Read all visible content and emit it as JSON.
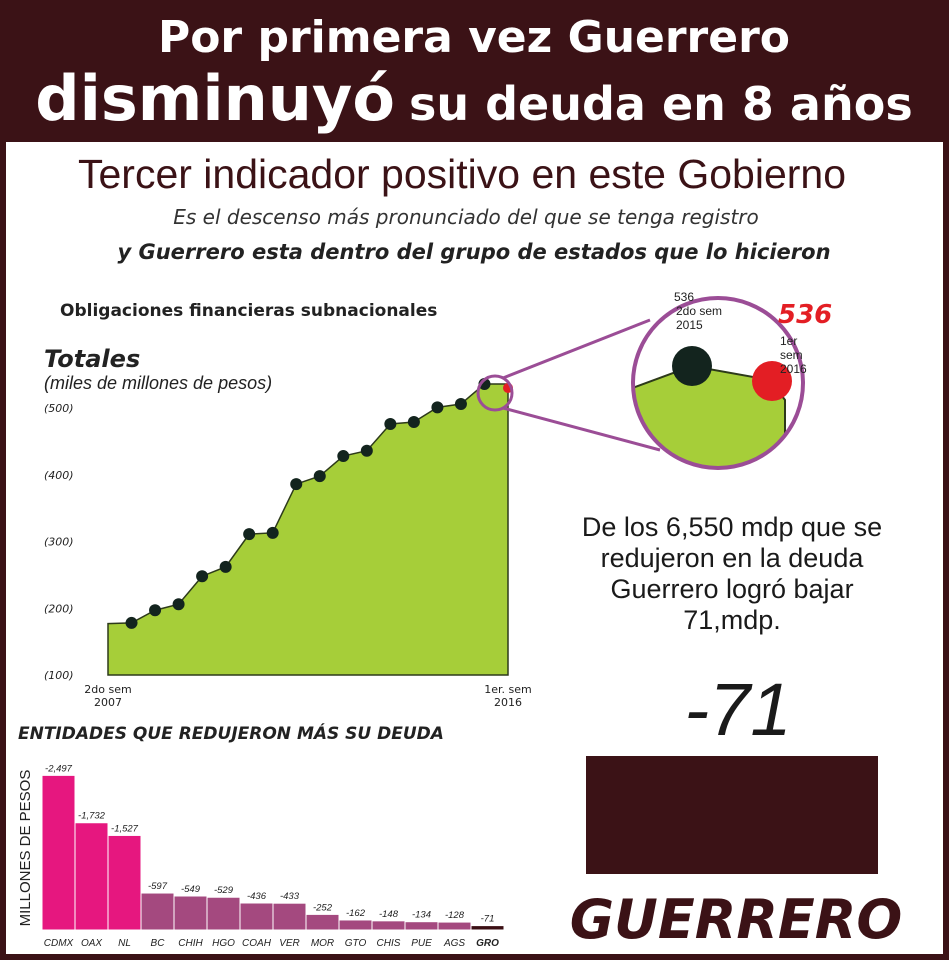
{
  "header": {
    "line1": "Por primera vez Guerrero",
    "line2a": "disminuyó",
    "line2b": "su deuda en 8 años"
  },
  "subtitle": "Tercer indicador positivo en este Gobierno",
  "lead": [
    "Es el descenso más pronunciado del que se tenga registro",
    "y Guerrero esta dentro del grupo de estados que lo hicieron"
  ],
  "note": "De los 6,550 mdp que se redujeron en la deuda Guerrero logró bajar 71,mdp.",
  "highlight": {
    "value": "-71",
    "label": "GUERRERO"
  },
  "zoom": [
    {
      "value": "536",
      "label": "2do sem 2015"
    },
    {
      "value": "536",
      "label": "1er sem 2016"
    }
  ],
  "chart_data": [
    {
      "type": "area",
      "title": "Obligaciones financieras subnacionales",
      "ylabel": "Totales",
      "ylabel_note": "(miles de millones de pesos)",
      "categories": [
        "2do sem 2007",
        null,
        null,
        null,
        null,
        null,
        null,
        null,
        null,
        null,
        null,
        null,
        null,
        null,
        null,
        null,
        null,
        "1er. sem 2016"
      ],
      "values": [
        177,
        178,
        197,
        206,
        248,
        262,
        311,
        313,
        386,
        398,
        428,
        436,
        476,
        479,
        501,
        506,
        536,
        536
      ],
      "color": "#a6ce39",
      "marker_colors": [
        null,
        "#13241e",
        "#13241e",
        "#13241e",
        "#13241e",
        "#13241e",
        "#13241e",
        "#13241e",
        "#13241e",
        "#13241e",
        "#13241e",
        "#13241e",
        "#13241e",
        "#13241e",
        "#13241e",
        "#13241e",
        "#13241e",
        "#e31e24"
      ],
      "ylim": [
        100,
        540
      ],
      "yticks": [
        {
          "value": 100,
          "label": "(100)"
        },
        {
          "value": 200,
          "label": "(200)"
        },
        {
          "value": 300,
          "label": "(300)"
        },
        {
          "value": 400,
          "label": "(400)"
        },
        {
          "value": 500,
          "label": "(500)"
        }
      ]
    },
    {
      "type": "bar",
      "title": "ENTIDADES QUE REDUJERON MÁS SU DEUDA",
      "ylabel": "MILLONES DE PESOS",
      "categories": [
        "CDMX",
        "OAX",
        "NL",
        "BC",
        "CHIH",
        "HGO",
        "COAH",
        "VER",
        "MOR",
        "GTO",
        "CHIS",
        "PUE",
        "AGS",
        "GRO"
      ],
      "values": [
        -2497,
        -1732,
        -1527,
        -597,
        -549,
        -529,
        -436,
        -433,
        -252,
        -162,
        -148,
        -134,
        -128,
        -71
      ],
      "value_labels": [
        "-2,497",
        "-1,732",
        "-1,527",
        "-597",
        "-549",
        "-529",
        "-436",
        "-433",
        "-252",
        "-162",
        "-148",
        "-134",
        "-128",
        "-71"
      ],
      "colors": [
        "#e6177f",
        "#e6177f",
        "#e6177f",
        "#a4497f",
        "#a4497f",
        "#a4497f",
        "#a4497f",
        "#a4497f",
        "#a4497f",
        "#a4497f",
        "#a4497f",
        "#a4497f",
        "#a4497f",
        "#3b0f14"
      ],
      "ylim": [
        0,
        -2600
      ]
    }
  ]
}
